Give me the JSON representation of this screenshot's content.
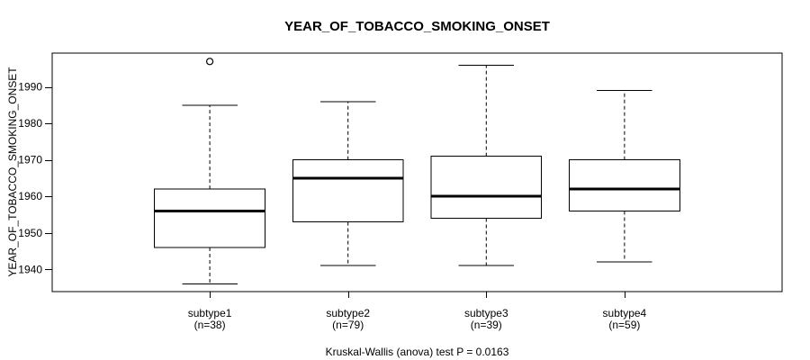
{
  "chart_data": {
    "type": "boxplot",
    "title": "YEAR_OF_TOBACCO_SMOKING_ONSET",
    "ylabel": "YEAR_OF_TOBACCO_SMOKING_ONSET",
    "caption": "Kruskal-Wallis (anova) test P = 0.0163",
    "ylim": [
      1933.9,
      1999.3
    ],
    "yticks": [
      1940,
      1950,
      1960,
      1970,
      1980,
      1990
    ],
    "grid": false,
    "legend": false,
    "series": [
      {
        "label": "subtype1",
        "n_label": "(n=38)",
        "whisker_low": 1936,
        "q1": 1946,
        "median": 1956,
        "q3": 1962,
        "whisker_high": 1985,
        "outliers": [
          1997
        ]
      },
      {
        "label": "subtype2",
        "n_label": "(n=79)",
        "whisker_low": 1941,
        "q1": 1953,
        "median": 1965,
        "q3": 1970,
        "whisker_high": 1986,
        "outliers": []
      },
      {
        "label": "subtype3",
        "n_label": "(n=39)",
        "whisker_low": 1941,
        "q1": 1954,
        "median": 1960,
        "q3": 1971,
        "whisker_high": 1996,
        "outliers": []
      },
      {
        "label": "subtype4",
        "n_label": "(n=59)",
        "whisker_low": 1942,
        "q1": 1956,
        "median": 1962,
        "q3": 1970,
        "whisker_high": 1989,
        "outliers": []
      }
    ]
  },
  "colors": {
    "background": "#ffffff",
    "text": "#000000",
    "frame_stroke": "#000000",
    "box_stroke": "#000000",
    "box_fill": "#ffffff",
    "median_stroke": "#000000",
    "whisker_stroke": "#000000",
    "outlier_stroke": "#000000"
  }
}
